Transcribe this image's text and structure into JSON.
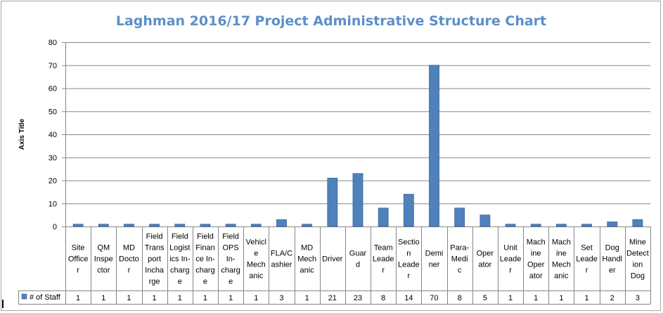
{
  "chart_data": {
    "type": "bar",
    "title": "Laghman 2016/17 Project Administrative Structure Chart",
    "ylabel": "Axis Title",
    "xlabel": "",
    "ylim": [
      0,
      80
    ],
    "yticks": [
      0,
      10,
      20,
      30,
      40,
      50,
      60,
      70,
      80
    ],
    "grid": true,
    "legend_position": "data-table-left",
    "bar_color": "#4f81bd",
    "categories": [
      [
        "Site",
        "Office",
        "r"
      ],
      [
        "QM",
        "Inspe",
        "ctor"
      ],
      [
        "MD",
        "Docto",
        "r"
      ],
      [
        "Field",
        "Trans",
        "port",
        "Incha",
        "rge"
      ],
      [
        "Field",
        "Logist",
        "ics In-",
        "charg",
        "e"
      ],
      [
        "Field",
        "Finan",
        "ce In-",
        "charg",
        "e"
      ],
      [
        "Field",
        "OPS",
        "In-",
        "charg",
        "e"
      ],
      [
        "Vehicl",
        "e",
        "Mech",
        "anic"
      ],
      [
        "FLA/C",
        "ashier"
      ],
      [
        "MD",
        "Mech",
        "anic"
      ],
      [
        "Driver"
      ],
      [
        "Guar",
        "d"
      ],
      [
        "Team",
        "Leade",
        "r"
      ],
      [
        "Sectio",
        "n",
        "Leade",
        "r"
      ],
      [
        "Demi",
        "ner"
      ],
      [
        "Para-",
        "Medi",
        "c"
      ],
      [
        "Oper",
        "ator"
      ],
      [
        "Unit",
        "Leade",
        "r"
      ],
      [
        "Mach",
        "ine",
        "Oper",
        "ator"
      ],
      [
        "Mach",
        "ine",
        "Mech",
        "anic"
      ],
      [
        "Set",
        "Leade",
        "r"
      ],
      [
        "Dog",
        "Handl",
        "er"
      ],
      [
        "Mine",
        "Detect",
        "ion",
        "Dog"
      ]
    ],
    "series": [
      {
        "name": "# of Staff",
        "values": [
          1,
          1,
          1,
          1,
          1,
          1,
          1,
          1,
          3,
          1,
          21,
          23,
          8,
          14,
          70,
          8,
          5,
          1,
          1,
          1,
          1,
          2,
          3
        ]
      }
    ]
  }
}
